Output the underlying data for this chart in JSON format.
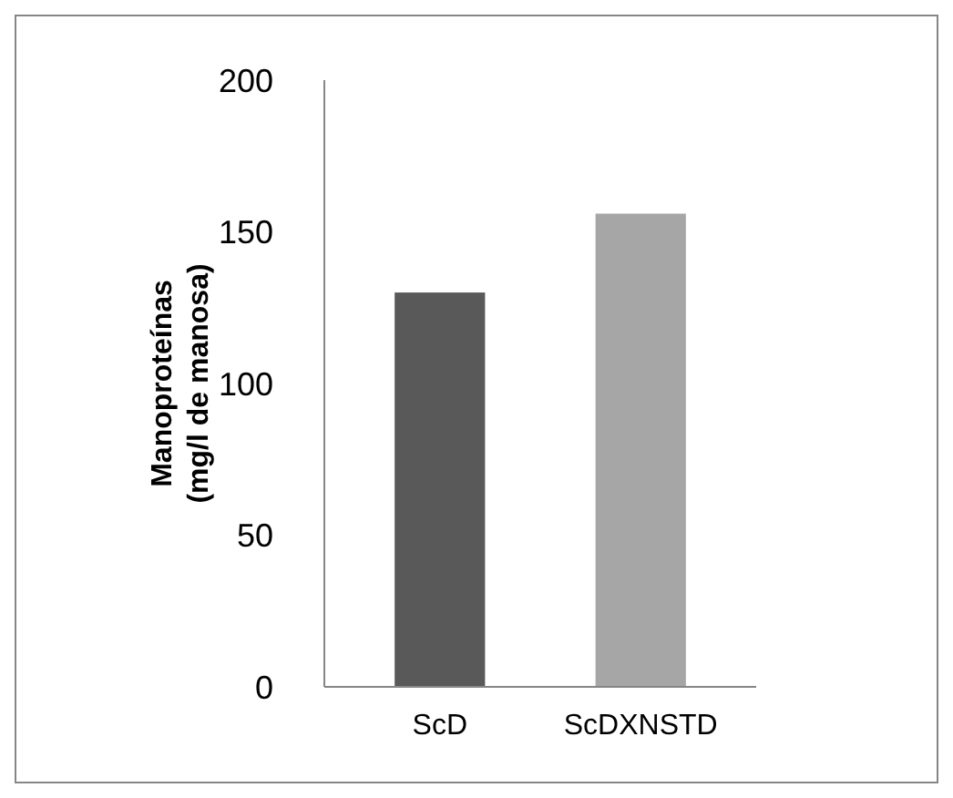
{
  "chart_data": {
    "type": "bar",
    "ylabel": "Manoproteínas\n(mg/l de manosa)",
    "categories": [
      "ScD",
      "ScDXNSTD"
    ],
    "values": [
      130,
      156
    ],
    "colors": [
      "#595959",
      "#a6a6a6"
    ],
    "ylim": [
      0,
      200
    ],
    "yticks": [
      0,
      50,
      100,
      150,
      200
    ],
    "grid": false
  }
}
